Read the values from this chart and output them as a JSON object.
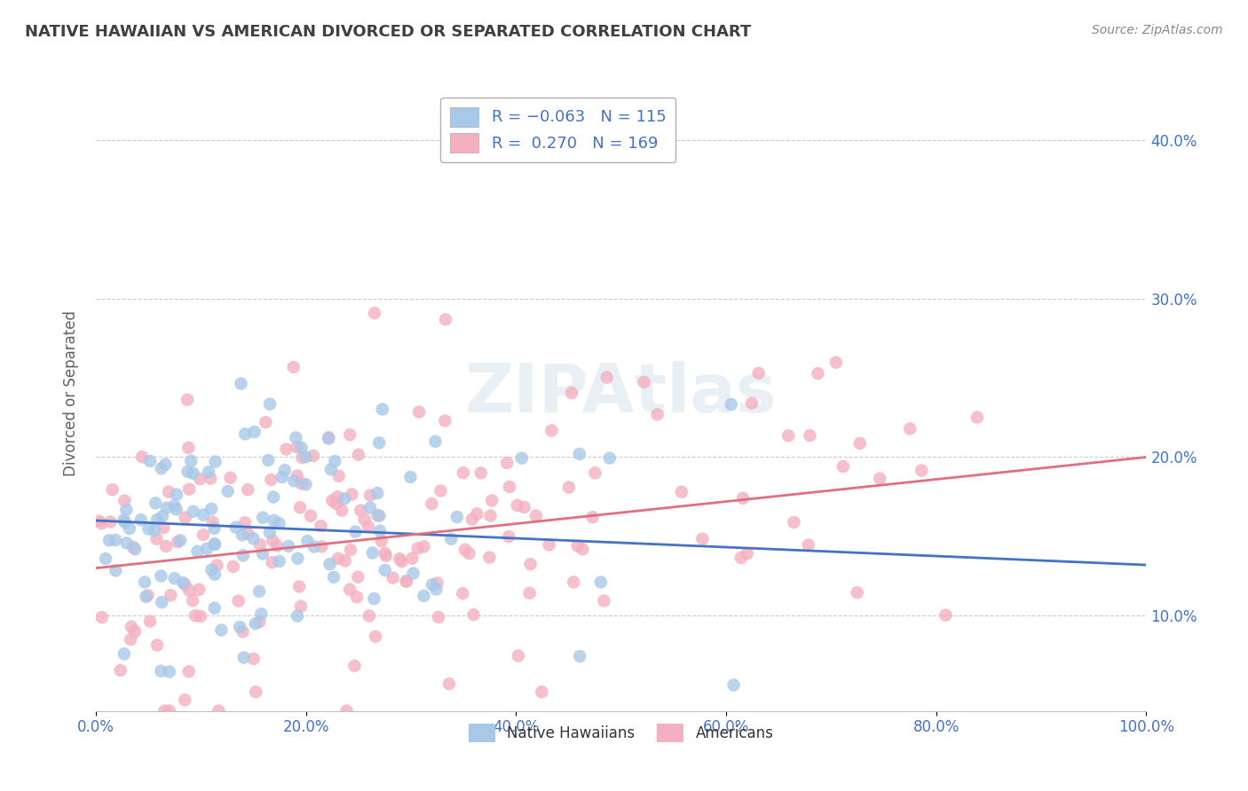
{
  "title": "NATIVE HAWAIIAN VS AMERICAN DIVORCED OR SEPARATED CORRELATION CHART",
  "source": "Source: ZipAtlas.com",
  "ylabel": "Divorced or Separated",
  "xlabel": "",
  "xlim": [
    0.0,
    1.0
  ],
  "ylim": [
    0.04,
    0.44
  ],
  "x_ticks": [
    0.0,
    0.2,
    0.4,
    0.6,
    0.8,
    1.0
  ],
  "x_tick_labels": [
    "0.0%",
    "20.0%",
    "40.0%",
    "60.0%",
    "80.0%",
    "100.0%"
  ],
  "y_ticks": [
    0.1,
    0.2,
    0.3,
    0.4
  ],
  "y_tick_labels": [
    "10.0%",
    "20.0%",
    "30.0%",
    "40.0%"
  ],
  "blue_color": "#a8c8e8",
  "blue_line_color": "#4472c4",
  "pink_color": "#f4b0c0",
  "pink_line_color": "#e07080",
  "legend_blue_label_r": "R = ",
  "legend_blue_r_val": "-0.063",
  "legend_blue_n": "N = 115",
  "legend_pink_label_r": "R =  ",
  "legend_pink_r_val": "0.270",
  "legend_pink_n": "N = 169",
  "legend_series_blue": "Native Hawaiians",
  "legend_series_pink": "Americans",
  "R_blue": -0.063,
  "N_blue": 115,
  "R_pink": 0.27,
  "N_pink": 169,
  "blue_intercept": 0.16,
  "blue_slope": -0.028,
  "pink_intercept": 0.13,
  "pink_slope": 0.07,
  "watermark": "ZIPAtlas",
  "background_color": "#ffffff",
  "grid_color": "#c0c0c0",
  "title_color": "#404040",
  "axis_label_color": "#606060",
  "tick_label_color": "#4472c4",
  "source_color": "#888888"
}
